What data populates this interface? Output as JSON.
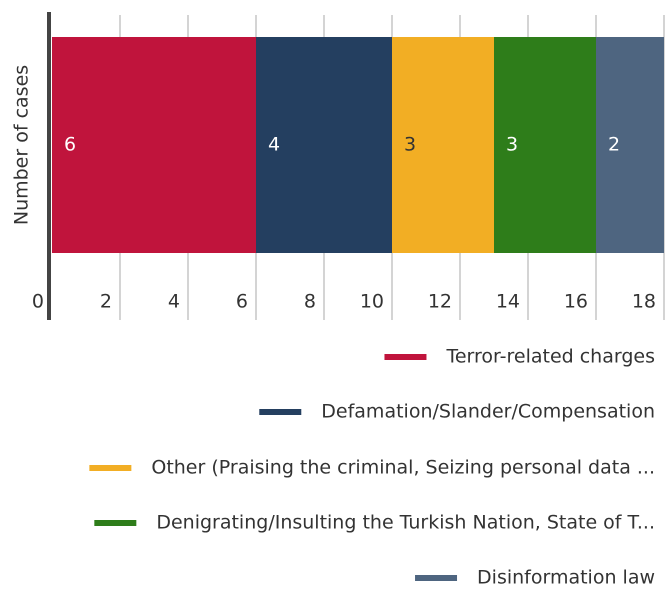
{
  "chart_data": {
    "type": "stacked-bar-horizontal",
    "ylabel": "Number of cases",
    "series": [
      {
        "name": "Terror-related charges",
        "color": "#c0143c",
        "values": [
          6
        ]
      },
      {
        "name": "Defamation/Slander/Compensation",
        "color": "#243f60",
        "values": [
          4
        ]
      },
      {
        "name": "Other (Praising the criminal, Seizing personal data ...",
        "color": "#f2ae24",
        "values": [
          3
        ]
      },
      {
        "name": "Denigrating/Insulting the Turkish Nation, State of T...",
        "color": "#2e7d1a",
        "values": [
          3
        ]
      },
      {
        "name": "Disinformation law",
        "color": "#4e6580",
        "values": [
          2
        ]
      }
    ],
    "xlim": [
      0,
      18
    ],
    "xticks": [
      0,
      2,
      4,
      6,
      8,
      10,
      12,
      14,
      16,
      18
    ],
    "grid": true,
    "legend": "bottom-right"
  }
}
